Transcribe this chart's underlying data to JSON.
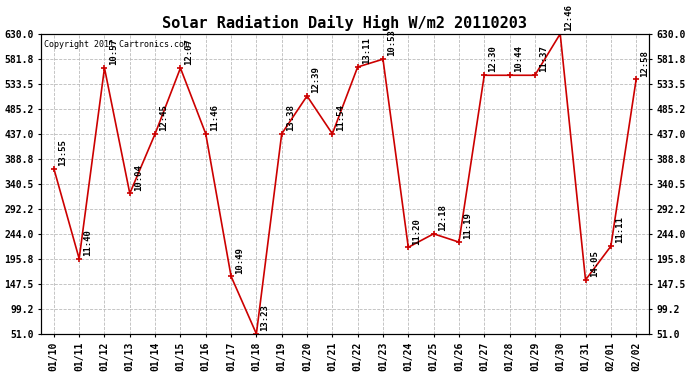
{
  "title": "Solar Radiation Daily High W/m2 20110203",
  "copyright": "Copyright 2011 Cartronics.com",
  "dates": [
    "01/10",
    "01/11",
    "01/12",
    "01/13",
    "01/14",
    "01/15",
    "01/16",
    "01/17",
    "01/18",
    "01/19",
    "01/20",
    "01/21",
    "01/22",
    "01/23",
    "01/24",
    "01/25",
    "01/26",
    "01/27",
    "01/28",
    "01/29",
    "01/30",
    "01/31",
    "02/01",
    "02/02"
  ],
  "values": [
    370,
    196,
    564,
    322,
    437,
    564,
    437,
    162,
    51,
    437,
    510,
    437,
    566,
    581,
    218,
    244,
    228,
    550,
    550,
    550,
    630,
    155,
    220,
    542
  ],
  "labels": [
    "13:55",
    "11:40",
    "10:57",
    "10:04",
    "12:45",
    "12:07",
    "11:46",
    "10:49",
    "13:23",
    "13:38",
    "12:39",
    "11:54",
    "13:11",
    "10:53",
    "11:20",
    "12:18",
    "11:19",
    "12:30",
    "10:44",
    "11:37",
    "12:46",
    "14:05",
    "11:11",
    "12:58"
  ],
  "line_color": "#cc0000",
  "marker_color": "#cc0000",
  "bg_color": "#ffffff",
  "grid_color": "#bbbbbb",
  "ylim": [
    51.0,
    630.0
  ],
  "yticks": [
    51.0,
    99.2,
    147.5,
    195.8,
    244.0,
    292.2,
    340.5,
    388.8,
    437.0,
    485.2,
    533.5,
    581.8,
    630.0
  ],
  "title_fontsize": 11,
  "label_fontsize": 6.5,
  "tick_fontsize": 7,
  "copyright_fontsize": 6
}
